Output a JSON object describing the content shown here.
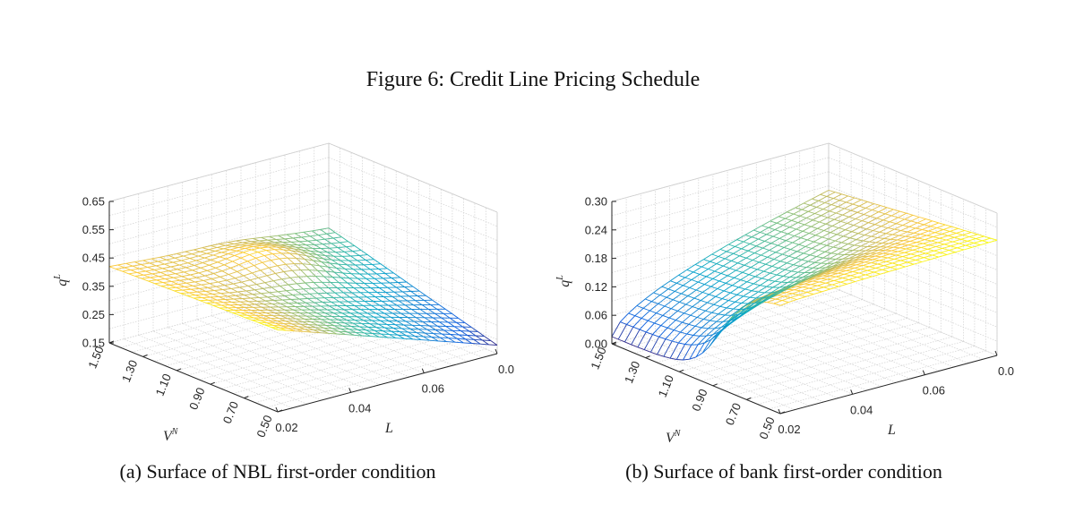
{
  "title": "Figure 6: Credit Line Pricing Schedule",
  "panels": [
    {
      "caption": "(a) Surface of NBL first-order condition",
      "z_label": "q",
      "z_label_sup": "L",
      "v_label": "V",
      "v_label_sup": "N",
      "l_label": "L",
      "z_ticks": [
        "0.65",
        "0.55",
        "0.45",
        "0.35",
        "0.25",
        "0.15"
      ],
      "v_ticks": [
        "1.50",
        "1.30",
        "1.10",
        "0.90",
        "0.70",
        "0.50"
      ],
      "l_ticks": [
        "0.02",
        "0.04",
        "0.06",
        "0.0"
      ]
    },
    {
      "caption": "(b) Surface of bank first-order condition",
      "z_label": "q",
      "z_label_sup": "L",
      "v_label": "V",
      "v_label_sup": "N",
      "l_label": "L",
      "z_ticks": [
        "0.30",
        "0.24",
        "0.18",
        "0.12",
        "0.06",
        "0.00"
      ],
      "v_ticks": [
        "1.50",
        "1.30",
        "1.10",
        "0.90",
        "0.70",
        "0.50"
      ],
      "l_ticks": [
        "0.02",
        "0.04",
        "0.06",
        "0.0"
      ]
    }
  ]
}
